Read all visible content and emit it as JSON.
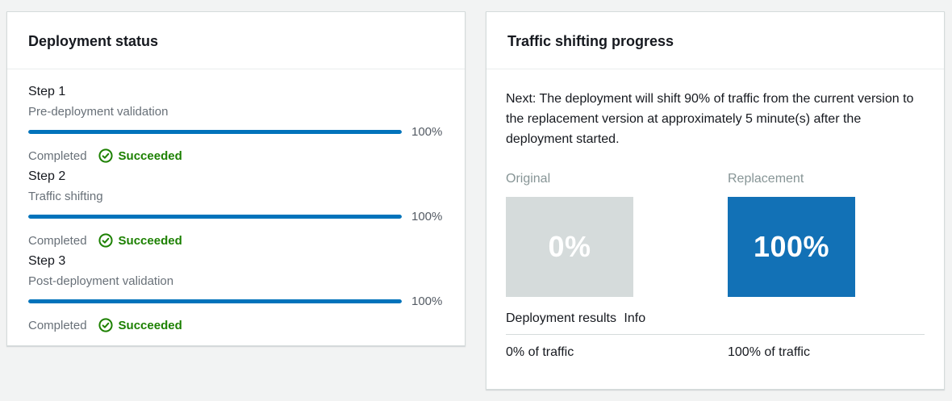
{
  "colors": {
    "blue": "#0073bb",
    "box-blue": "#1271b6",
    "box-gray": "#d5dbdb",
    "green": "#1d8102",
    "bg": "#f2f3f3"
  },
  "deployment_status_card": {
    "title": "Deployment status",
    "steps": [
      {
        "name": "Step 1",
        "description": "Pre-deployment validation",
        "progress_label": "100%",
        "progress_value": 100,
        "status_label": "Completed",
        "status_icon": "check-circle",
        "status": "Succeeded"
      },
      {
        "name": "Step 2",
        "description": "Traffic shifting",
        "progress_label": "100%",
        "progress_value": 100,
        "status_label": "Completed",
        "status_icon": "check-circle",
        "status": "Succeeded"
      },
      {
        "name": "Step 3",
        "description": "Post-deployment validation",
        "progress_label": "100%",
        "progress_value": 100,
        "status_label": "Completed",
        "status_icon": "check-circle",
        "status": "Succeeded"
      }
    ]
  },
  "traffic_shifting_card": {
    "title": "Traffic shifting progress",
    "next_message": "Next: The deployment will shift 90% of traffic from the current version to the replacement version at approximately 5 minute(s) after the deployment started.",
    "original": {
      "label": "Original",
      "percent": "0%",
      "traffic": "0% of traffic"
    },
    "replacement": {
      "label": "Replacement",
      "percent": "100%",
      "traffic": "100% of traffic"
    },
    "results_label": "Deployment results",
    "info_label": "Info"
  }
}
